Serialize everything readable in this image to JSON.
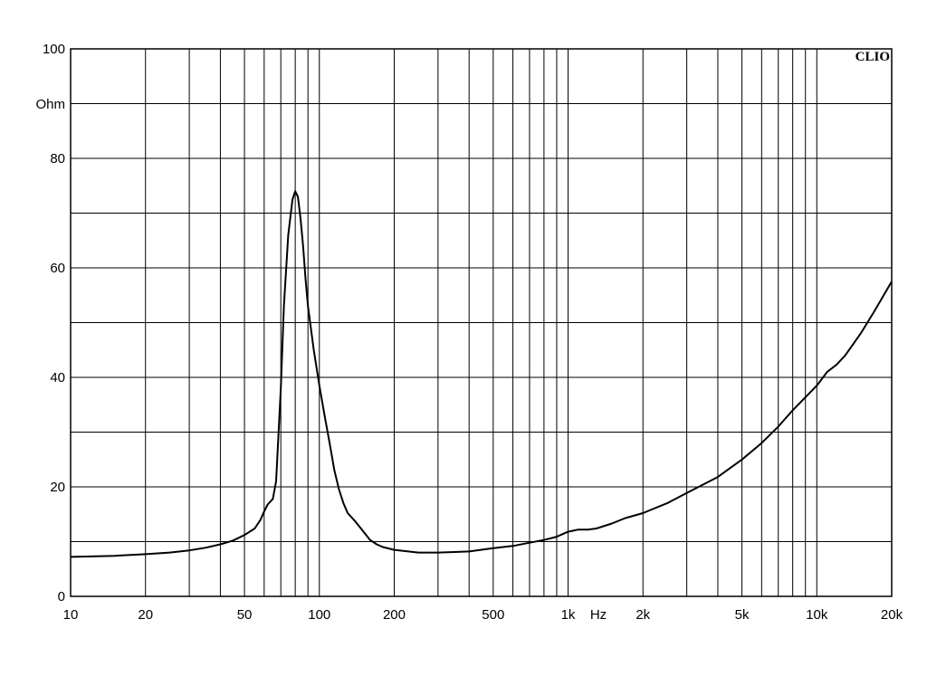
{
  "chart_data": {
    "type": "line",
    "title": "",
    "brand": "CLIO",
    "xlabel": "Hz",
    "ylabel": "Ohm",
    "x_scale": "log",
    "xlim": [
      10,
      20000
    ],
    "ylim": [
      0,
      100
    ],
    "grid": true,
    "x_ticks": [
      {
        "value": 10,
        "label": "10"
      },
      {
        "value": 20,
        "label": "20"
      },
      {
        "value": 50,
        "label": "50"
      },
      {
        "value": 100,
        "label": "100"
      },
      {
        "value": 200,
        "label": "200"
      },
      {
        "value": 500,
        "label": "500"
      },
      {
        "value": 1000,
        "label": "1k"
      },
      {
        "value": 2000,
        "label": "2k"
      },
      {
        "value": 5000,
        "label": "5k"
      },
      {
        "value": 10000,
        "label": "10k"
      },
      {
        "value": 20000,
        "label": "20k"
      }
    ],
    "x_gridlines": [
      10,
      20,
      30,
      40,
      50,
      60,
      70,
      80,
      90,
      100,
      200,
      300,
      400,
      500,
      600,
      700,
      800,
      900,
      1000,
      2000,
      3000,
      4000,
      5000,
      6000,
      7000,
      8000,
      9000,
      10000,
      20000
    ],
    "y_ticks": [
      {
        "value": 0,
        "label": "0"
      },
      {
        "value": 20,
        "label": "20"
      },
      {
        "value": 40,
        "label": "40"
      },
      {
        "value": 60,
        "label": "60"
      },
      {
        "value": 80,
        "label": "80"
      },
      {
        "value": 100,
        "label": "100"
      }
    ],
    "y_gridlines": [
      0,
      10,
      20,
      30,
      40,
      50,
      60,
      70,
      80,
      90,
      100
    ],
    "series": [
      {
        "color": "#000000",
        "x": [
          10,
          15,
          20,
          25,
          30,
          35,
          40,
          45,
          50,
          55,
          58,
          60,
          62,
          65,
          67,
          70,
          72,
          75,
          78,
          80,
          82,
          84,
          86,
          88,
          90,
          95,
          100,
          105,
          110,
          115,
          120,
          125,
          130,
          140,
          150,
          160,
          170,
          180,
          200,
          250,
          300,
          400,
          500,
          600,
          700,
          800,
          900,
          1000,
          1100,
          1200,
          1300,
          1500,
          1700,
          2000,
          2500,
          3000,
          4000,
          5000,
          6000,
          7000,
          8000,
          10000,
          11000,
          12000,
          13000,
          15000,
          17000,
          20000
        ],
        "y": [
          7.2,
          7.4,
          7.7,
          8.0,
          8.4,
          8.9,
          9.5,
          10.2,
          11.2,
          12.4,
          14.0,
          15.5,
          16.8,
          17.8,
          21.0,
          38.0,
          53.0,
          66.0,
          72.5,
          74.0,
          73.0,
          69.0,
          64.0,
          58.0,
          53.0,
          45.0,
          38.5,
          33.0,
          28.0,
          23.0,
          19.5,
          17.0,
          15.2,
          13.6,
          11.9,
          10.3,
          9.5,
          9.0,
          8.5,
          8.0,
          8.0,
          8.2,
          8.8,
          9.2,
          9.8,
          10.3,
          10.9,
          11.8,
          12.2,
          12.2,
          12.4,
          13.3,
          14.3,
          15.2,
          17.0,
          18.9,
          21.8,
          25.0,
          28.0,
          31.0,
          34.0,
          38.5,
          41.0,
          42.3,
          44.0,
          48.0,
          52.0,
          57.5
        ]
      }
    ]
  }
}
